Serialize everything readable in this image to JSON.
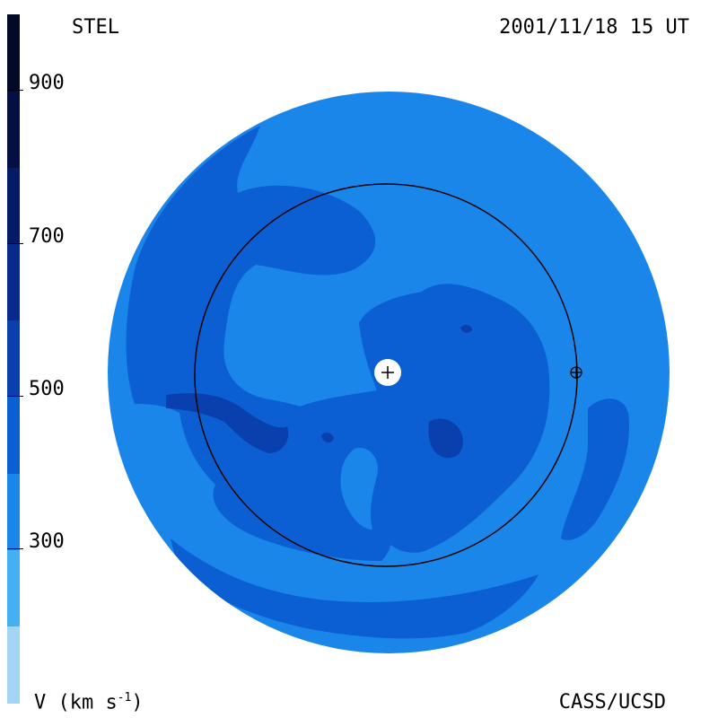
{
  "header": {
    "observatory": "STEL",
    "timestamp": "2001/11/18 15 UT"
  },
  "footer": {
    "credit": "CASS/UCSD",
    "unit_prefix": "V (km s",
    "unit_exp": "-1",
    "unit_suffix": ")"
  },
  "colorbar": {
    "ticks": [
      "900",
      "700",
      "500",
      "300"
    ],
    "bands": [
      "#a3d6f5",
      "#44b0f2",
      "#1a86ea",
      "#0b5fd2",
      "#0a3fae",
      "#082a8a",
      "#061b66",
      "#040f44",
      "#020a28"
    ]
  },
  "map": {
    "variable": "solar wind velocity",
    "center_marker": "sun-marker",
    "orbit": "earth-orbit",
    "earth_marker": "earth-marker",
    "colors": {
      "background_field": "#1a86ea",
      "mid_speed": "#0b5fd2",
      "high_speed": "#0a3fae",
      "orbit_line": "#000000"
    }
  }
}
